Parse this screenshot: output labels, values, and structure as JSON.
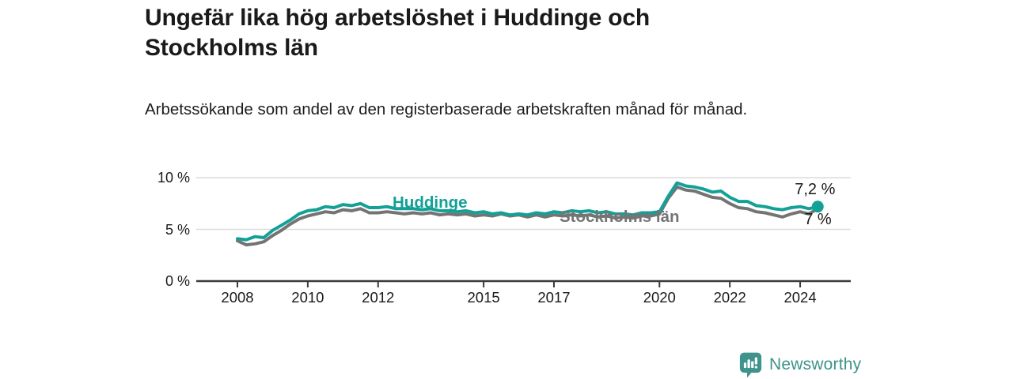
{
  "chart_data": {
    "type": "line",
    "title": "Ungefär lika hög arbetslöshet i Huddinge och Stockholms län",
    "subtitle": "Arbetssökande som andel av den registerbaserade arbetskraften månad för månad.",
    "x_unit": "year",
    "y_unit": "percent",
    "ylim": [
      0,
      10.5
    ],
    "xlim": [
      2006.8,
      2025.5
    ],
    "grid": "horizontal",
    "legend_position": "inline-labels",
    "x": [
      2008,
      2008.25,
      2008.5,
      2008.75,
      2009,
      2009.25,
      2009.5,
      2009.75,
      2010,
      2010.25,
      2010.5,
      2010.75,
      2011,
      2011.25,
      2011.5,
      2011.75,
      2012,
      2012.25,
      2012.5,
      2012.75,
      2013,
      2013.25,
      2013.5,
      2013.75,
      2014,
      2014.25,
      2014.5,
      2014.75,
      2015,
      2015.25,
      2015.5,
      2015.75,
      2016,
      2016.25,
      2016.5,
      2016.75,
      2017,
      2017.25,
      2017.5,
      2017.75,
      2018,
      2018.25,
      2018.5,
      2018.75,
      2019,
      2019.25,
      2019.5,
      2019.75,
      2020,
      2020.25,
      2020.5,
      2020.75,
      2021,
      2021.25,
      2021.5,
      2021.75,
      2022,
      2022.25,
      2022.5,
      2022.75,
      2023,
      2023.25,
      2023.5,
      2023.75,
      2024,
      2024.25,
      2024.5
    ],
    "series": [
      {
        "name": "Huddinge",
        "color": "#13A097",
        "end_label": "7,2 %",
        "end_value": 7.2,
        "values": [
          4.1,
          4.0,
          4.3,
          4.2,
          4.9,
          5.4,
          5.9,
          6.5,
          6.8,
          6.9,
          7.2,
          7.1,
          7.4,
          7.3,
          7.5,
          7.1,
          7.1,
          7.2,
          7.0,
          7.0,
          7.0,
          6.9,
          7.0,
          6.8,
          6.8,
          6.7,
          6.8,
          6.6,
          6.7,
          6.5,
          6.6,
          6.4,
          6.5,
          6.4,
          6.6,
          6.5,
          6.7,
          6.6,
          6.8,
          6.7,
          6.8,
          6.6,
          6.7,
          6.5,
          6.5,
          6.4,
          6.6,
          6.6,
          6.7,
          8.2,
          9.5,
          9.2,
          9.1,
          8.9,
          8.6,
          8.7,
          8.1,
          7.7,
          7.7,
          7.3,
          7.2,
          7.0,
          6.9,
          7.1,
          7.2,
          7.0,
          7.2
        ]
      },
      {
        "name": "Stockholms län",
        "color": "#747474",
        "end_label": "7 %",
        "end_value": 7.0,
        "values": [
          3.9,
          3.5,
          3.6,
          3.8,
          4.4,
          4.9,
          5.5,
          6.0,
          6.3,
          6.5,
          6.7,
          6.6,
          6.9,
          6.8,
          7.0,
          6.6,
          6.6,
          6.7,
          6.6,
          6.5,
          6.6,
          6.5,
          6.6,
          6.4,
          6.5,
          6.4,
          6.5,
          6.3,
          6.4,
          6.3,
          6.5,
          6.3,
          6.4,
          6.2,
          6.4,
          6.2,
          6.4,
          6.3,
          6.4,
          6.3,
          6.4,
          6.2,
          6.3,
          6.1,
          6.2,
          6.1,
          6.3,
          6.3,
          6.5,
          8.0,
          9.1,
          8.8,
          8.7,
          8.4,
          8.1,
          8.0,
          7.5,
          7.1,
          7.0,
          6.7,
          6.6,
          6.4,
          6.2,
          6.5,
          6.7,
          6.5,
          7.0
        ]
      }
    ],
    "yticks": [
      {
        "value": 0,
        "label": "0 %"
      },
      {
        "value": 5,
        "label": "5 %"
      },
      {
        "value": 10,
        "label": "10 %"
      }
    ],
    "xticks": [
      {
        "value": 2008,
        "label": "2008"
      },
      {
        "value": 2010,
        "label": "2010"
      },
      {
        "value": 2012,
        "label": "2012"
      },
      {
        "value": 2015,
        "label": "2015"
      },
      {
        "value": 2017,
        "label": "2017"
      },
      {
        "value": 2020,
        "label": "2020"
      },
      {
        "value": 2022,
        "label": "2022"
      },
      {
        "value": 2024,
        "label": "2024"
      }
    ]
  },
  "footer": {
    "brand": "Newsworthy"
  },
  "colors": {
    "accent_teal": "#13A097",
    "series_gray": "#747474",
    "logo_teal": "#3E938B",
    "axis": "#3A3A3A",
    "grid": "#DCDCDC",
    "text": "#1A1A1A"
  }
}
